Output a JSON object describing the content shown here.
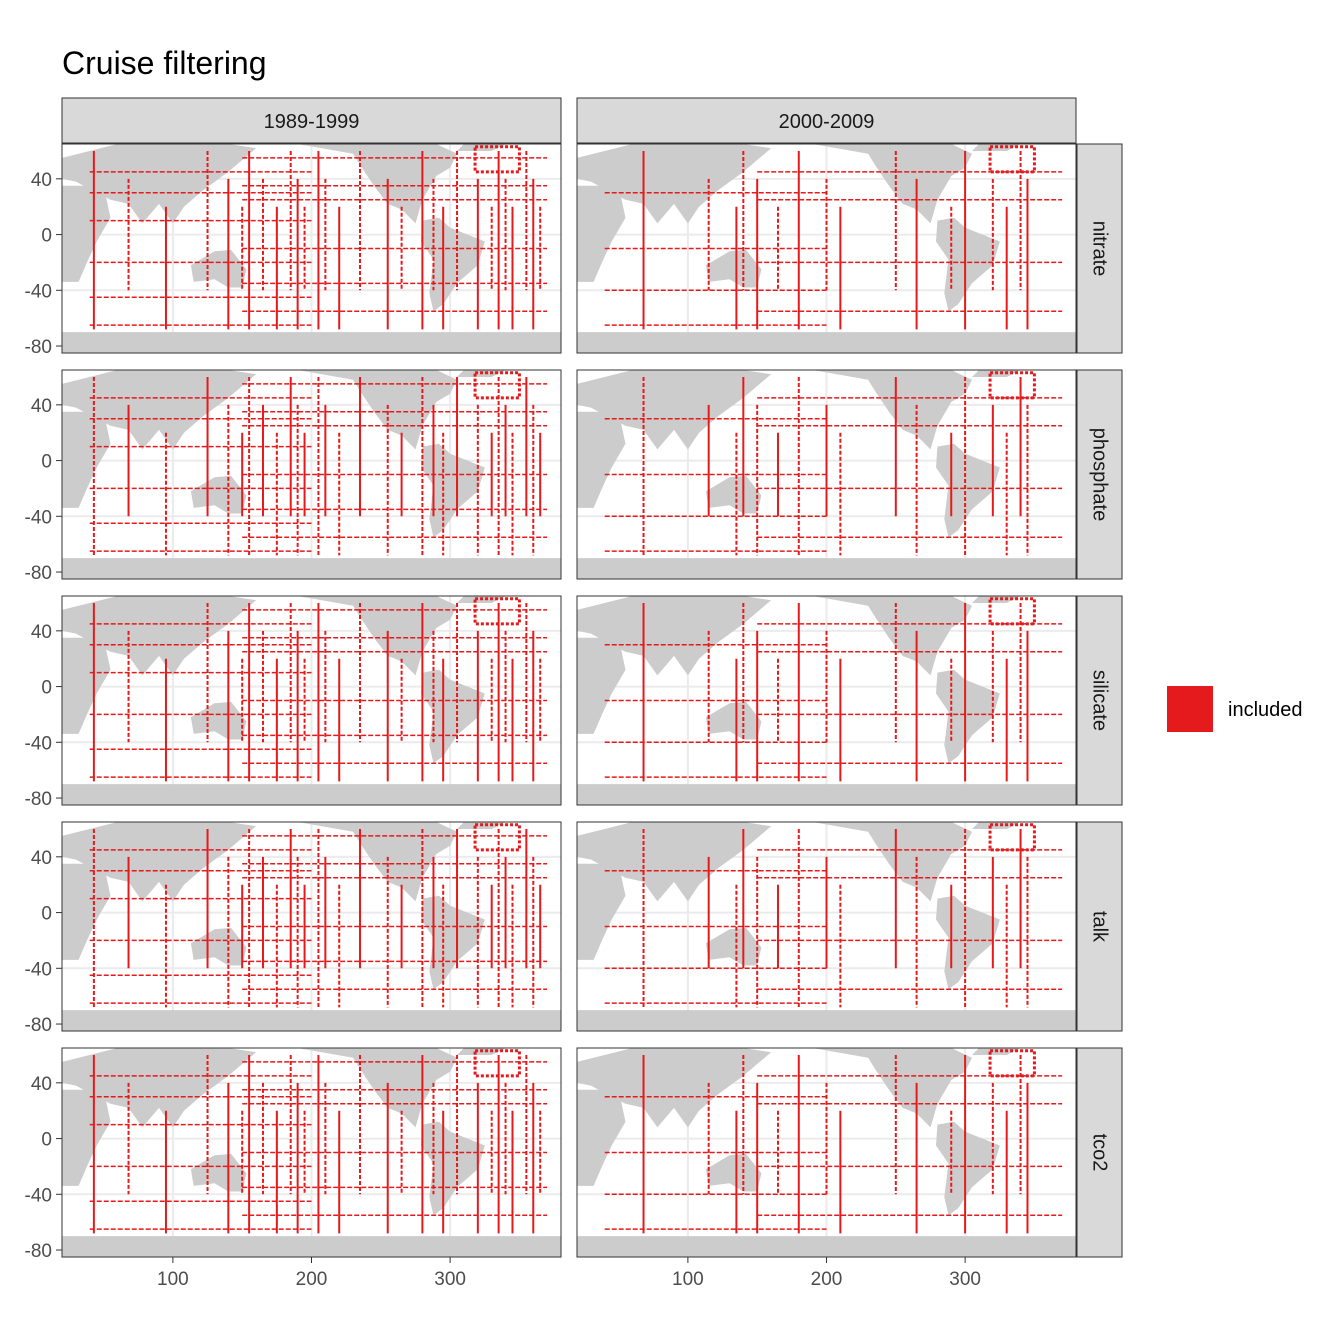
{
  "chart_data": {
    "type": "heatmap",
    "title": "Cruise filtering",
    "facet_columns": [
      "1989-1999",
      "2000-2009"
    ],
    "facet_rows": [
      "nitrate",
      "phosphate",
      "silicate",
      "talk",
      "tco2"
    ],
    "x_ticks": [
      100,
      200,
      300
    ],
    "y_ticks": [
      40,
      0,
      -40,
      -80
    ],
    "xlim": [
      20,
      380
    ],
    "ylim": [
      -85,
      65
    ],
    "legend": {
      "position": "right",
      "entries": [
        {
          "label": "included",
          "color": "#e41a1c"
        }
      ]
    },
    "colors": {
      "included": "#e41a1c",
      "land": "#cccccc",
      "ocean": "#ffffff",
      "strip": "#d9d9d9",
      "grid": "#ebebeb"
    },
    "tracks": {
      "meridional_lon": [
        43,
        68,
        95,
        125,
        140,
        150,
        155,
        165,
        175,
        185,
        190,
        195,
        205,
        210,
        220,
        235,
        255,
        265,
        280,
        288,
        295,
        305,
        320,
        330,
        335,
        340,
        345,
        355,
        360,
        365
      ],
      "zonal_lat": [
        -65,
        -55,
        -45,
        -35,
        -20,
        -10,
        10,
        25,
        30,
        35,
        45,
        55
      ],
      "period_2000_2009_meridional_lon": [
        68,
        115,
        135,
        140,
        150,
        165,
        180,
        200,
        210,
        250,
        265,
        290,
        300,
        320,
        330,
        340,
        345
      ],
      "period_2000_2009_zonal_lat": [
        -65,
        -55,
        -40,
        -20,
        -10,
        25,
        30,
        45
      ]
    }
  }
}
